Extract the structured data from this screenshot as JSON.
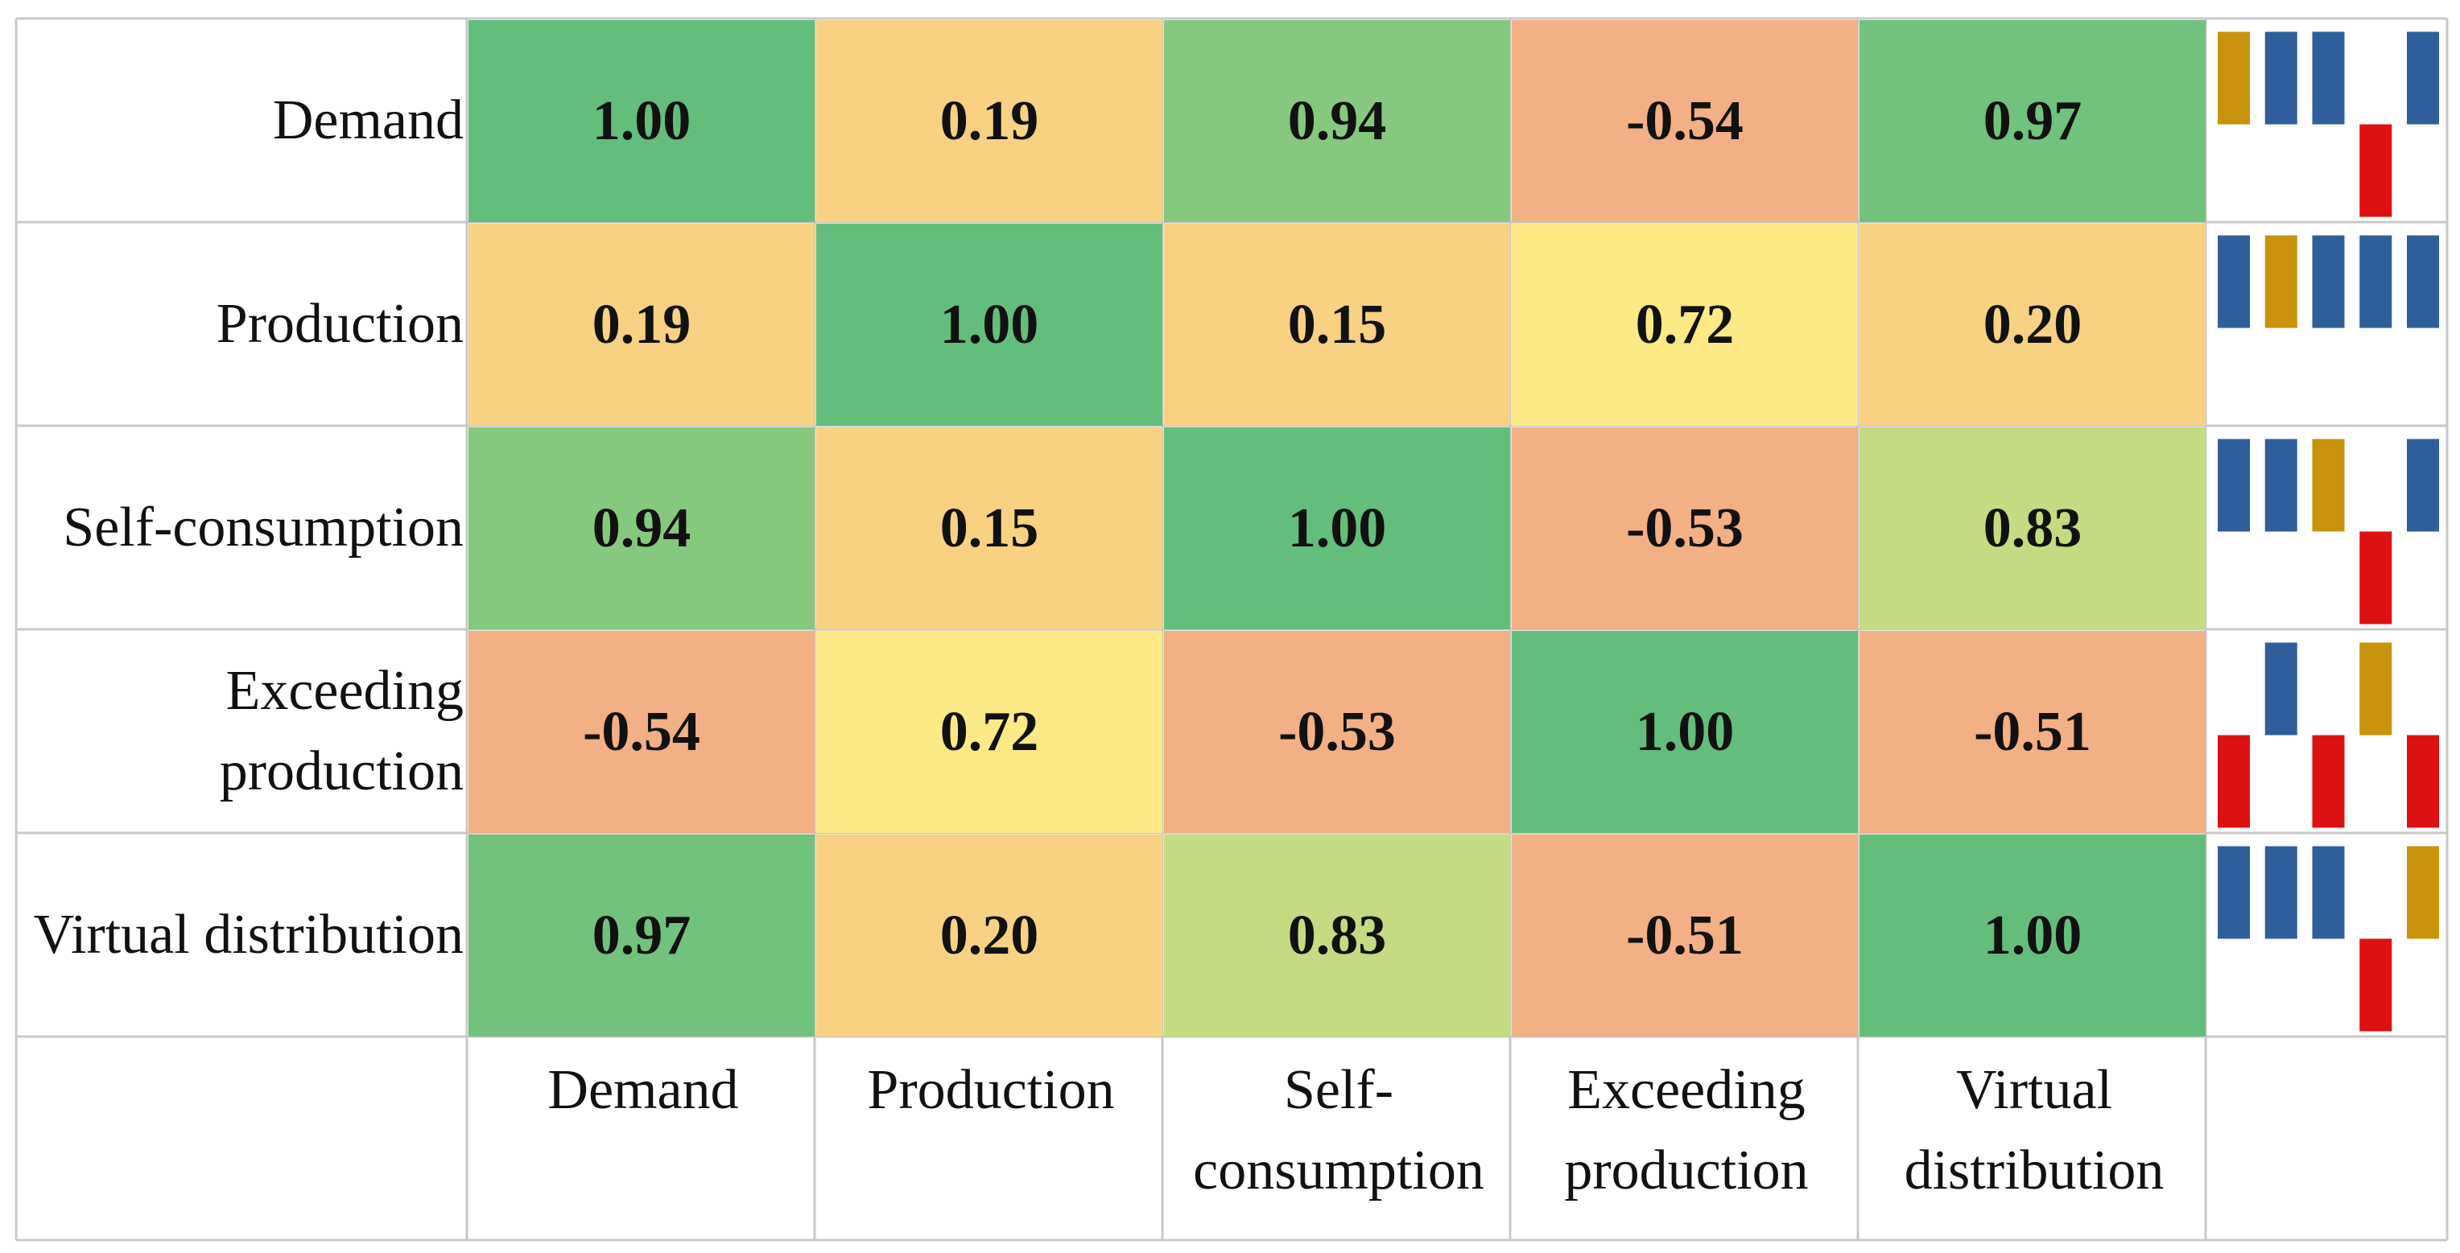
{
  "chart_data": {
    "type": "heatmap",
    "title": "",
    "rows": [
      "Demand",
      "Production",
      "Self-consumption",
      "Exceeding production",
      "Virtual distribution"
    ],
    "columns": [
      "Demand",
      "Production",
      "Self-consumption",
      "Exceeding production",
      "Virtual distribution"
    ],
    "values": [
      [
        1.0,
        0.19,
        0.94,
        -0.54,
        0.97
      ],
      [
        0.19,
        1.0,
        0.15,
        0.72,
        0.2
      ],
      [
        0.94,
        0.15,
        1.0,
        -0.53,
        0.83
      ],
      [
        -0.54,
        0.72,
        -0.53,
        1.0,
        -0.51
      ],
      [
        0.97,
        0.2,
        0.83,
        -0.51,
        1.0
      ]
    ],
    "value_labels": [
      [
        "1.00",
        "0.19",
        "0.94",
        "-0.54",
        "0.97"
      ],
      [
        "0.19",
        "1.00",
        "0.15",
        "0.72",
        "0.20"
      ],
      [
        "0.94",
        "0.15",
        "1.00",
        "-0.53",
        "0.83"
      ],
      [
        "-0.54",
        "0.72",
        "-0.53",
        "1.00",
        "-0.51"
      ],
      [
        "0.97",
        "0.20",
        "0.83",
        "-0.51",
        "1.00"
      ]
    ],
    "cell_colors": [
      [
        "#63be7b",
        "#f8d183",
        "#86c97e",
        "#f2b084",
        "#71c27c"
      ],
      [
        "#f8d183",
        "#63be7b",
        "#f8d183",
        "#fde985",
        "#f8d183"
      ],
      [
        "#86c97e",
        "#f8d183",
        "#63be7b",
        "#f2b084",
        "#c5db81"
      ],
      [
        "#f2b084",
        "#fde985",
        "#f2b084",
        "#63be7b",
        "#f2b084"
      ],
      [
        "#71c27c",
        "#f8d183",
        "#c5db81",
        "#f2b084",
        "#63be7b"
      ]
    ],
    "sparkline_colors": {
      "positive": "#2f5f9a",
      "negative": "#dd1111",
      "self": "#c8930a"
    }
  }
}
